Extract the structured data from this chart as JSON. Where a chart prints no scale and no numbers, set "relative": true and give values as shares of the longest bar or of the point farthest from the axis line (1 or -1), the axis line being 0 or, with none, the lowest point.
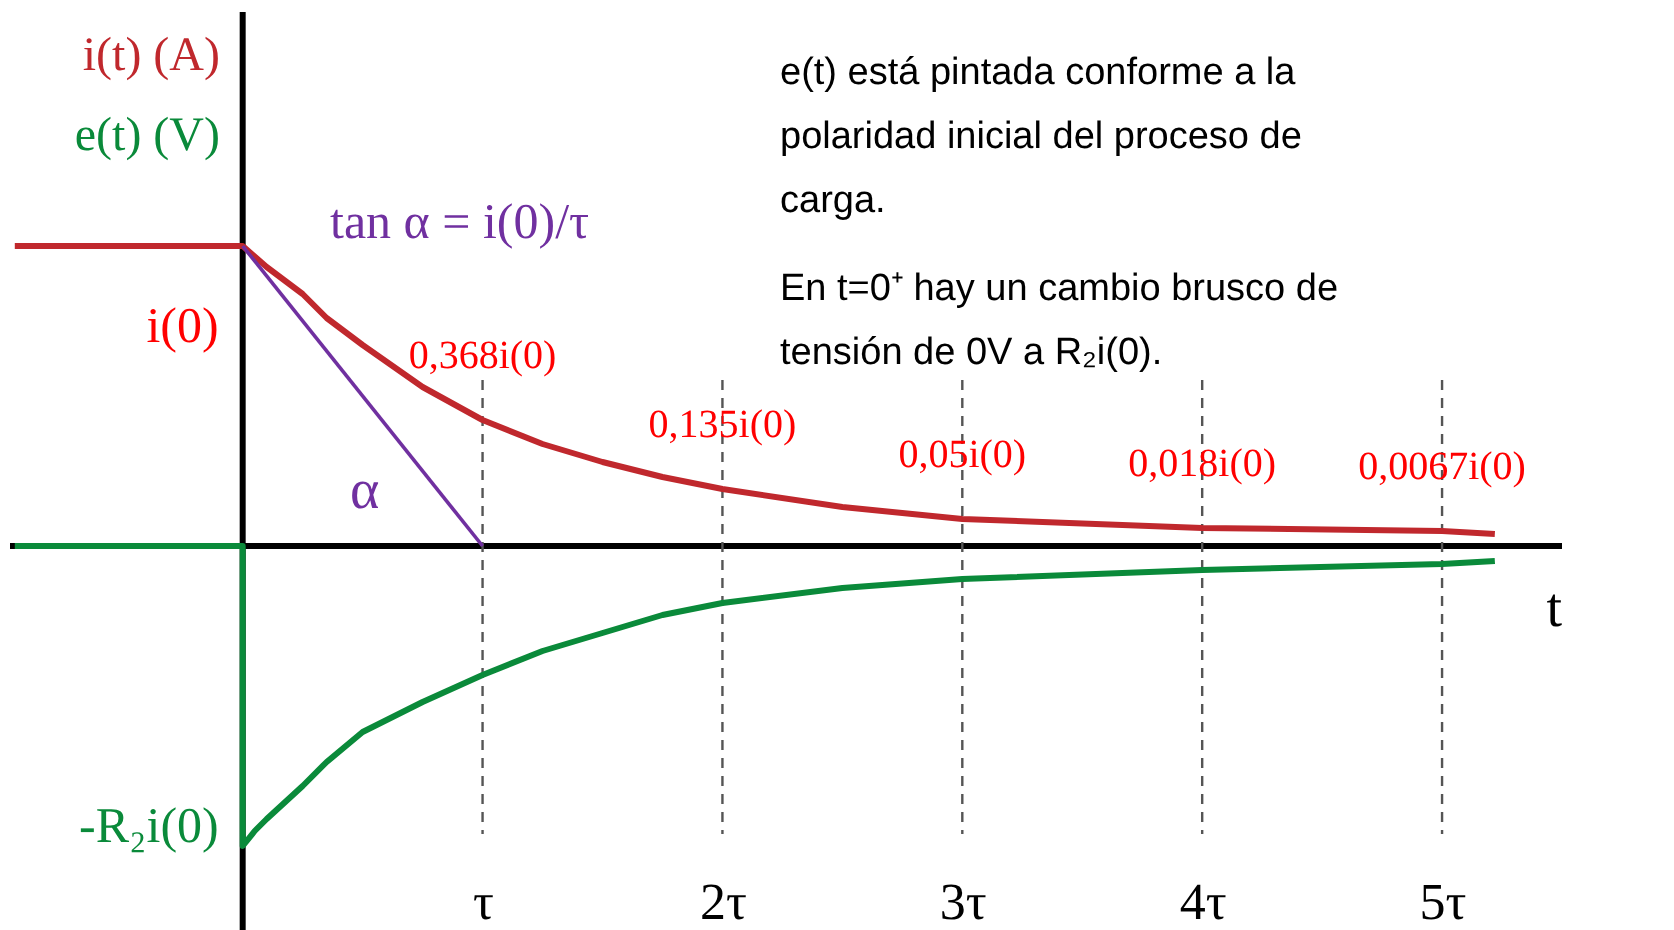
{
  "chart_data": {
    "type": "line",
    "relative": true,
    "xlabel": "t",
    "xlim": [
      -0.97,
      5.5
    ],
    "xticks": [
      {
        "value": 1,
        "label": "τ"
      },
      {
        "value": 2,
        "label": "2τ"
      },
      {
        "value": 3,
        "label": "3τ"
      },
      {
        "value": 4,
        "label": "4τ"
      },
      {
        "value": 5,
        "label": "5τ"
      }
    ],
    "series": [
      {
        "name": "i(t) (A)",
        "color": "#c0282d",
        "x": [
          -0.95,
          0,
          0.1,
          0.25,
          0.35,
          0.5,
          0.75,
          1,
          1.25,
          1.5,
          1.75,
          2,
          2.5,
          3,
          4,
          5,
          5.22
        ],
        "values": [
          1,
          1,
          0.93,
          0.84,
          0.76,
          0.67,
          0.53,
          0.42,
          0.34,
          0.28,
          0.23,
          0.19,
          0.13,
          0.09,
          0.06,
          0.05,
          0.04
        ]
      },
      {
        "name": "e(t) (V)",
        "color": "#0a8a3a",
        "x": [
          -0.95,
          0,
          0,
          0.05,
          0.1,
          0.25,
          0.35,
          0.5,
          0.75,
          1,
          1.25,
          1.5,
          1.75,
          2,
          2.5,
          3,
          4,
          5,
          5.22
        ],
        "values": [
          0,
          0,
          -1,
          -0.95,
          -0.91,
          -0.8,
          -0.72,
          -0.62,
          -0.52,
          -0.43,
          -0.35,
          -0.29,
          -0.23,
          -0.19,
          -0.14,
          -0.11,
          -0.08,
          -0.06,
          -0.05
        ]
      },
      {
        "color": "#7030a0",
        "x": [
          0,
          1
        ],
        "values": [
          1,
          0
        ]
      }
    ],
    "ref_lines": [
      {
        "axis": "x",
        "value": 1,
        "color": "#555555",
        "line_style": "dashed"
      },
      {
        "axis": "x",
        "value": 2,
        "color": "#555555",
        "line_style": "dashed"
      },
      {
        "axis": "x",
        "value": 3,
        "color": "#555555",
        "line_style": "dashed"
      },
      {
        "axis": "x",
        "value": 4,
        "color": "#555555",
        "line_style": "dashed"
      },
      {
        "axis": "x",
        "value": 5,
        "color": "#555555",
        "line_style": "dashed"
      }
    ],
    "annotations": [
      "tan α = i(0)/τ",
      "α",
      "e(t) está pintada conforme a la polaridad inicial del proceso de carga.",
      "En t=0⁺ hay un cambio brusco de tensión de 0V a R₂i(0).",
      {
        "text": "i(0)",
        "x": 0,
        "y": 1
      },
      {
        "text": "-R₂i(0)",
        "x": 0,
        "y": -1
      },
      {
        "text": "0,368i(0)",
        "x": 1,
        "y": 0.42
      },
      {
        "text": "0,135i(0)",
        "x": 2,
        "y": 0.19
      },
      {
        "text": "0,05i(0)",
        "x": 3,
        "y": 0.09
      },
      {
        "text": "0,018i(0)",
        "x": 4,
        "y": 0.06
      },
      {
        "text": "0,0067i(0)",
        "x": 5,
        "y": 0.05
      }
    ],
    "grid": false,
    "marker": "none",
    "line_style": "solid"
  }
}
